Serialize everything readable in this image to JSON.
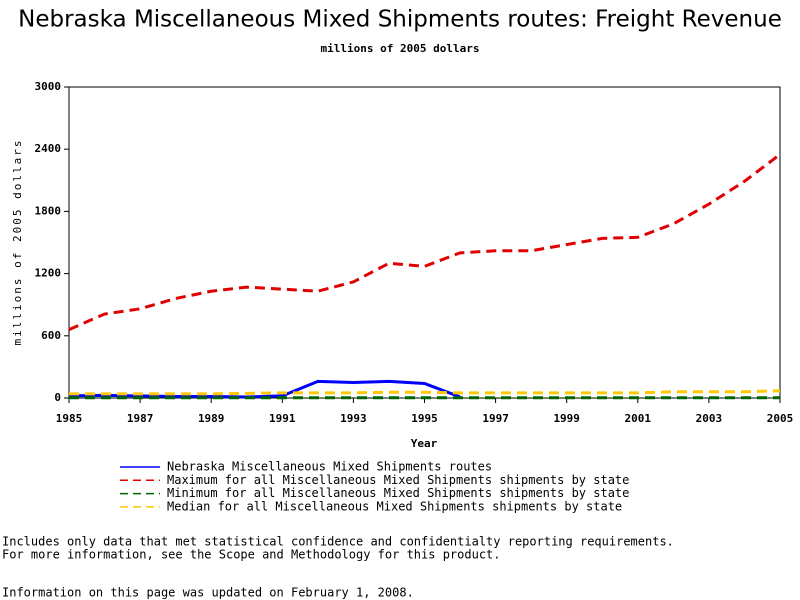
{
  "chart_data": {
    "type": "line",
    "title": "Nebraska Miscellaneous Mixed Shipments routes: Freight Revenue",
    "subtitle": "millions of 2005 dollars",
    "y_label": "millions of 2005 dollars",
    "x_label": "Year",
    "x": [
      1985,
      1986,
      1987,
      1988,
      1989,
      1990,
      1991,
      1992,
      1993,
      1994,
      1995,
      1996,
      1997,
      1998,
      1999,
      2000,
      2001,
      2002,
      2003,
      2004,
      2005
    ],
    "xlim": [
      1985,
      2005
    ],
    "xticks": [
      1985,
      1987,
      1989,
      1991,
      1993,
      1995,
      1997,
      1999,
      2001,
      2003,
      2005
    ],
    "ylim": [
      0,
      3000
    ],
    "yticks": [
      0,
      600,
      1200,
      1800,
      2400,
      3000
    ],
    "series": [
      {
        "name": "Nebraska Miscellaneous Mixed Shipments routes",
        "color": "#0000ff",
        "dashed": false,
        "values": [
          20,
          25,
          20,
          15,
          15,
          10,
          20,
          160,
          150,
          160,
          140,
          10,
          null,
          null,
          null,
          null,
          null,
          null,
          null,
          null,
          null
        ]
      },
      {
        "name": "Maximum for all Miscellaneous Mixed Shipments shipments by state",
        "color": "#e00000",
        "dashed": true,
        "values": [
          660,
          810,
          860,
          960,
          1030,
          1070,
          1050,
          1030,
          1120,
          1300,
          1270,
          1400,
          1420,
          1420,
          1480,
          1540,
          1550,
          1680,
          1870,
          2090,
          2350
        ]
      },
      {
        "name": "Minimum for all Miscellaneous Mixed Shipments shipments by state",
        "color": "#006400",
        "dashed": true,
        "values": [
          2,
          2,
          2,
          2,
          2,
          2,
          2,
          2,
          2,
          2,
          2,
          2,
          2,
          2,
          2,
          2,
          2,
          2,
          2,
          2,
          2
        ]
      },
      {
        "name": "Median for all Miscellaneous Mixed Shipments shipments by state",
        "color": "#ffc800",
        "dashed": true,
        "values": [
          40,
          40,
          40,
          40,
          40,
          45,
          50,
          50,
          50,
          55,
          55,
          50,
          50,
          50,
          50,
          50,
          50,
          60,
          60,
          60,
          70
        ]
      }
    ],
    "footnotes": [
      "Includes only data that met statistical confidence and confidentialty reporting requirements.",
      "For more information, see the Scope and Methodology for this product.",
      "Information on this page was updated on February 1, 2008."
    ]
  }
}
